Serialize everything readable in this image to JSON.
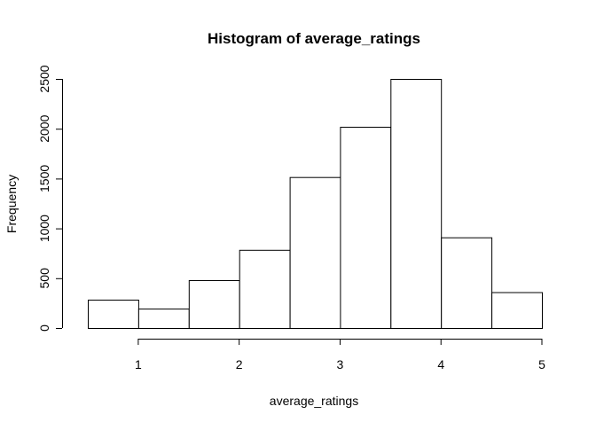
{
  "chart_data": {
    "type": "bar",
    "title": "Histogram of average_ratings",
    "xlabel": "average_ratings",
    "ylabel": "Frequency",
    "bin_edges": [
      0.5,
      1.0,
      1.5,
      2.0,
      2.5,
      3.0,
      3.5,
      4.0,
      4.5,
      5.0
    ],
    "values": [
      285,
      195,
      480,
      785,
      1515,
      2020,
      2500,
      910,
      360
    ],
    "xlim": [
      0.5,
      5.0
    ],
    "ylim": [
      0,
      2500
    ],
    "x_ticks": [
      1,
      2,
      3,
      4,
      5
    ],
    "x_tick_labels": [
      "1",
      "2",
      "3",
      "4",
      "5"
    ],
    "y_ticks": [
      0,
      500,
      1000,
      1500,
      2000,
      2500
    ],
    "y_tick_labels": [
      "0",
      "500",
      "1000",
      "1500",
      "2000",
      "2500"
    ],
    "grid": false,
    "legend": "none"
  }
}
